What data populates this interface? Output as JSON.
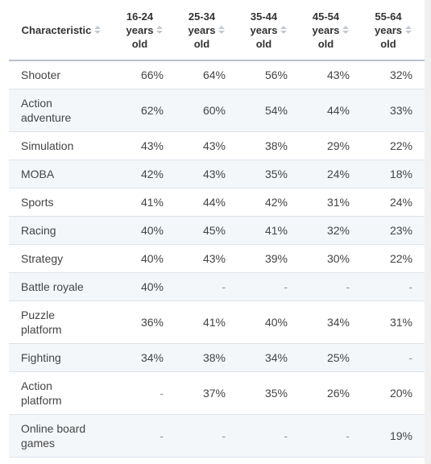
{
  "table": {
    "headers": [
      {
        "label": "Characteristic",
        "lines": [
          "Characteristic"
        ]
      },
      {
        "label": "16-24 years old",
        "lines": [
          "16-24",
          "years",
          "old"
        ]
      },
      {
        "label": "25-34 years old",
        "lines": [
          "25-34",
          "years",
          "old"
        ]
      },
      {
        "label": "35-44 years old",
        "lines": [
          "35-44",
          "years",
          "old"
        ]
      },
      {
        "label": "45-54 years old",
        "lines": [
          "45-54",
          "years",
          "old"
        ]
      },
      {
        "label": "55-64 years old",
        "lines": [
          "55-64",
          "years",
          "old"
        ]
      }
    ],
    "rows": [
      {
        "name": "Shooter",
        "name_lines": [
          "Shooter"
        ],
        "values": [
          "66%",
          "64%",
          "56%",
          "43%",
          "32%"
        ]
      },
      {
        "name": "Action adventure",
        "name_lines": [
          "Action",
          "adventure"
        ],
        "values": [
          "62%",
          "60%",
          "54%",
          "44%",
          "33%"
        ]
      },
      {
        "name": "Simulation",
        "name_lines": [
          "Simulation"
        ],
        "values": [
          "43%",
          "43%",
          "38%",
          "29%",
          "22%"
        ]
      },
      {
        "name": "MOBA",
        "name_lines": [
          "MOBA"
        ],
        "values": [
          "42%",
          "43%",
          "35%",
          "24%",
          "18%"
        ]
      },
      {
        "name": "Sports",
        "name_lines": [
          "Sports"
        ],
        "values": [
          "41%",
          "44%",
          "42%",
          "31%",
          "24%"
        ]
      },
      {
        "name": "Racing",
        "name_lines": [
          "Racing"
        ],
        "values": [
          "40%",
          "45%",
          "41%",
          "32%",
          "23%"
        ]
      },
      {
        "name": "Strategy",
        "name_lines": [
          "Strategy"
        ],
        "values": [
          "40%",
          "43%",
          "39%",
          "30%",
          "22%"
        ]
      },
      {
        "name": "Battle royale",
        "name_lines": [
          "Battle royale"
        ],
        "values": [
          "40%",
          "-",
          "-",
          "-",
          "-"
        ]
      },
      {
        "name": "Puzzle platform",
        "name_lines": [
          "Puzzle",
          "platform"
        ],
        "values": [
          "36%",
          "41%",
          "40%",
          "34%",
          "31%"
        ]
      },
      {
        "name": "Fighting",
        "name_lines": [
          "Fighting"
        ],
        "values": [
          "34%",
          "38%",
          "34%",
          "25%",
          "-"
        ]
      },
      {
        "name": "Action platform",
        "name_lines": [
          "Action",
          "platform"
        ],
        "values": [
          "-",
          "37%",
          "35%",
          "26%",
          "20%"
        ]
      },
      {
        "name": "Online board games",
        "name_lines": [
          "Online board",
          "games"
        ],
        "values": [
          "-",
          "-",
          "-",
          "-",
          "19%"
        ]
      }
    ]
  },
  "icons": {
    "sort": "sort-icon"
  },
  "colors": {
    "header_border": "#b8c2cc",
    "row_alt_bg": "#f4f7fa",
    "row_border": "#dde3ea"
  }
}
